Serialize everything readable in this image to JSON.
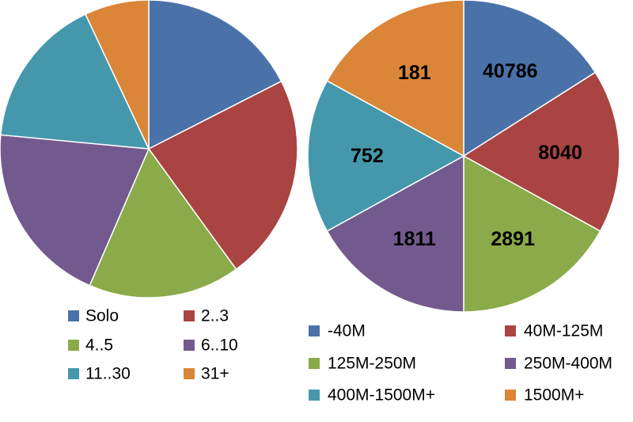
{
  "chart_data": [
    {
      "type": "pie",
      "title": "",
      "categories": [
        "Solo",
        "2..3",
        "4..5",
        "6..10",
        "11..30",
        "31+"
      ],
      "values": [
        17.5,
        22.5,
        16.5,
        20.0,
        16.5,
        7.0
      ],
      "colors": [
        "#4A72A9",
        "#A94442",
        "#8BAA4A",
        "#735A8E",
        "#4598AC",
        "#DA8538"
      ],
      "data_labels": [
        "",
        "",
        "",
        "",
        "",
        ""
      ],
      "start_angle_deg": 0,
      "direction": "clockwise",
      "legend": "bottom"
    },
    {
      "type": "pie",
      "title": "",
      "categories": [
        "-40M",
        "40M-125M",
        "125M-250M",
        "250M-400M",
        "400M-1500M+",
        "1500M+"
      ],
      "values": [
        40786,
        8040,
        2891,
        1811,
        752,
        181
      ],
      "display_proportions": [
        16.0,
        17.0,
        17.0,
        17.0,
        16.0,
        17.0
      ],
      "colors": [
        "#4A72A9",
        "#A94442",
        "#8BAA4A",
        "#735A8E",
        "#4598AC",
        "#DA8538"
      ],
      "data_labels": [
        "40786",
        "8040",
        "2891",
        "1811",
        "752",
        "181"
      ],
      "start_angle_deg": 0,
      "direction": "clockwise",
      "legend": "bottom"
    }
  ]
}
